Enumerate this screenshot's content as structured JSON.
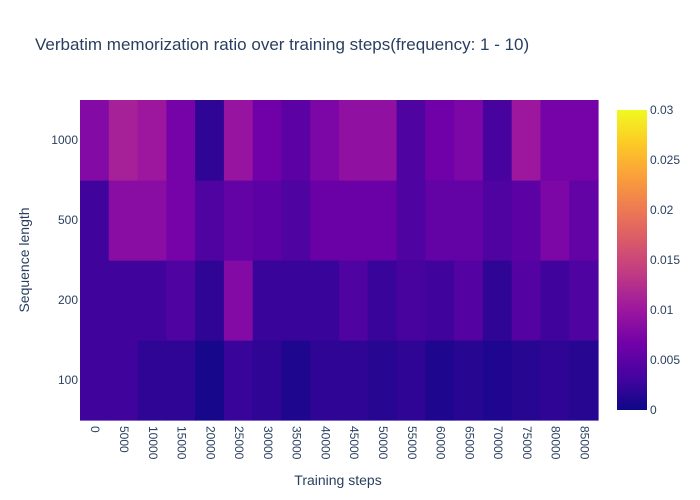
{
  "chart_data": {
    "type": "heatmap",
    "title": "Verbatim memorization ratio over training steps(frequency: 1 - 10)",
    "xlabel": "Training steps",
    "ylabel": "Sequence length",
    "x": [
      "0",
      "5000",
      "10000",
      "15000",
      "20000",
      "25000",
      "30000",
      "35000",
      "40000",
      "45000",
      "50000",
      "55000",
      "60000",
      "65000",
      "70000",
      "75000",
      "80000",
      "85000"
    ],
    "y": [
      "100",
      "200",
      "500",
      "1000"
    ],
    "z": [
      [
        0.003,
        0.003,
        0.002,
        0.002,
        0.0005,
        0.0025,
        0.002,
        0.001,
        0.002,
        0.002,
        0.0015,
        0.002,
        0.001,
        0.0015,
        0.001,
        0.0015,
        0.002,
        0.0015
      ],
      [
        0.003,
        0.003,
        0.003,
        0.004,
        0.002,
        0.008,
        0.0025,
        0.0025,
        0.0025,
        0.004,
        0.0025,
        0.0035,
        0.003,
        0.0045,
        0.002,
        0.0045,
        0.003,
        0.004
      ],
      [
        0.003,
        0.0085,
        0.0085,
        0.007,
        0.004,
        0.0055,
        0.005,
        0.004,
        0.006,
        0.006,
        0.006,
        0.004,
        0.0055,
        0.0055,
        0.004,
        0.005,
        0.0075,
        0.0055
      ],
      [
        0.008,
        0.011,
        0.01,
        0.007,
        0.002,
        0.0095,
        0.0065,
        0.005,
        0.0075,
        0.009,
        0.009,
        0.004,
        0.0065,
        0.0075,
        0.0035,
        0.01,
        0.007,
        0.007
      ]
    ],
    "zmin": 0,
    "zmax": 0.03,
    "colorbar": {
      "ticks": [
        0,
        0.005,
        0.01,
        0.015,
        0.02,
        0.025,
        0.03
      ],
      "tick_labels": [
        "0",
        "0.005",
        "0.01",
        "0.015",
        "0.02",
        "0.025",
        "0.03"
      ]
    },
    "colorscale": [
      "#0d0887",
      "#46039f",
      "#7201a8",
      "#9c179e",
      "#bd3786",
      "#d8576b",
      "#ed7953",
      "#fb9f3a",
      "#fdca26",
      "#f0f921"
    ],
    "grid": false,
    "legend": "none"
  }
}
